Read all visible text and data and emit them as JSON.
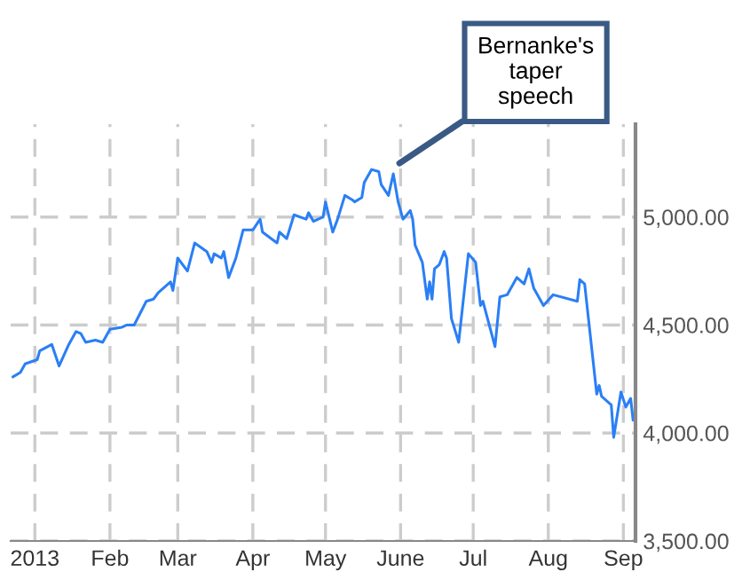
{
  "chart_data": {
    "type": "line",
    "grid": true,
    "marker": "none",
    "line_style": "solid",
    "legend": false,
    "xlim": [
      "2012-12-22",
      "2013-09-06"
    ],
    "xticks": [
      {
        "value": "2013-01-01",
        "label": "2013"
      },
      {
        "value": "2013-02-01",
        "label": "Feb"
      },
      {
        "value": "2013-03-01",
        "label": "Mar"
      },
      {
        "value": "2013-04-01",
        "label": "Apr"
      },
      {
        "value": "2013-05-01",
        "label": "May"
      },
      {
        "value": "2013-06-01",
        "label": "June"
      },
      {
        "value": "2013-07-01",
        "label": "Jul"
      },
      {
        "value": "2013-08-01",
        "label": "Aug"
      },
      {
        "value": "2013-09-01",
        "label": "Sep"
      }
    ],
    "ylim": [
      3500,
      5430
    ],
    "yticks": [
      {
        "value": 3500,
        "label": "3,500.00"
      },
      {
        "value": 4000,
        "label": "4,000.00"
      },
      {
        "value": 4500,
        "label": "4,500.00"
      },
      {
        "value": 5000,
        "label": "5,000.00"
      }
    ],
    "annotations": [
      {
        "text": "Bernanke's\ntaper\nspeech",
        "x": "2013-05-29",
        "y": 5230
      }
    ],
    "x": [
      "2012-12-23",
      "2012-12-26",
      "2012-12-28",
      "2013-01-02",
      "2013-01-03",
      "2013-01-08",
      "2013-01-11",
      "2013-01-15",
      "2013-01-18",
      "2013-01-20",
      "2013-01-22",
      "2013-01-26",
      "2013-01-29",
      "2013-02-01",
      "2013-02-06",
      "2013-02-08",
      "2013-02-11",
      "2013-02-16",
      "2013-02-19",
      "2013-02-21",
      "2013-02-26",
      "2013-02-27",
      "2013-03-01",
      "2013-03-05",
      "2013-03-08",
      "2013-03-13",
      "2013-03-15",
      "2013-03-16",
      "2013-03-19",
      "2013-03-20",
      "2013-03-22",
      "2013-03-25",
      "2013-03-28",
      "2013-04-01",
      "2013-04-04",
      "2013-04-05",
      "2013-04-11",
      "2013-04-12",
      "2013-04-15",
      "2013-04-18",
      "2013-04-23",
      "2013-04-24",
      "2013-04-26",
      "2013-04-30",
      "2013-05-01",
      "2013-05-04",
      "2013-05-06",
      "2013-05-09",
      "2013-05-12",
      "2013-05-13",
      "2013-05-16",
      "2013-05-17",
      "2013-05-20",
      "2013-05-23",
      "2013-05-24",
      "2013-05-27",
      "2013-05-29",
      "2013-05-31",
      "2013-06-02",
      "2013-06-05",
      "2013-06-06",
      "2013-06-07",
      "2013-06-10",
      "2013-06-12",
      "2013-06-13",
      "2013-06-14",
      "2013-06-15",
      "2013-06-17",
      "2013-06-19",
      "2013-06-20",
      "2013-06-22",
      "2013-06-25",
      "2013-06-29",
      "2013-07-02",
      "2013-07-04",
      "2013-07-05",
      "2013-07-10",
      "2013-07-12",
      "2013-07-15",
      "2013-07-19",
      "2013-07-22",
      "2013-07-24",
      "2013-07-26",
      "2013-07-30",
      "2013-08-03",
      "2013-08-13",
      "2013-08-14",
      "2013-08-16",
      "2013-08-21",
      "2013-08-22",
      "2013-08-23",
      "2013-08-27",
      "2013-08-28",
      "2013-08-31",
      "2013-09-02",
      "2013-09-04",
      "2013-09-05"
    ],
    "series": [
      {
        "color": "#2a7ff5",
        "values": [
          4260,
          4280,
          4320,
          4340,
          4380,
          4410,
          4310,
          4410,
          4470,
          4460,
          4420,
          4430,
          4420,
          4480,
          4490,
          4500,
          4500,
          4610,
          4620,
          4650,
          4700,
          4660,
          4810,
          4750,
          4880,
          4840,
          4790,
          4830,
          4810,
          4840,
          4720,
          4810,
          4940,
          4940,
          4990,
          4930,
          4880,
          4930,
          4900,
          5010,
          4990,
          5020,
          4980,
          5000,
          5070,
          4930,
          4990,
          5100,
          5080,
          5070,
          5090,
          5160,
          5220,
          5210,
          5150,
          5100,
          5200,
          5070,
          4990,
          5030,
          4990,
          4870,
          4790,
          4620,
          4700,
          4620,
          4760,
          4780,
          4840,
          4810,
          4530,
          4420,
          4830,
          4790,
          4590,
          4610,
          4400,
          4630,
          4640,
          4720,
          4690,
          4760,
          4670,
          4590,
          4640,
          4610,
          4710,
          4690,
          4180,
          4220,
          4170,
          4130,
          3980,
          4190,
          4120,
          4160,
          4060
        ]
      }
    ]
  }
}
